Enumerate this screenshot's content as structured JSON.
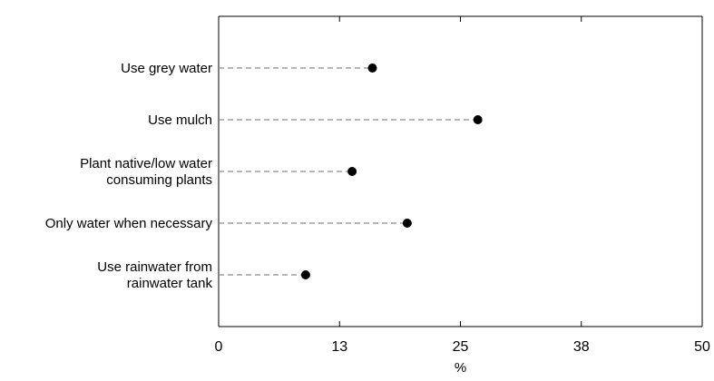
{
  "chart_data": {
    "type": "dot",
    "title": "",
    "xlabel": "%",
    "ylabel": "",
    "xlim": [
      0,
      50
    ],
    "x_ticks": [
      "0",
      "13",
      "25",
      "38",
      "50"
    ],
    "x_tick_values": [
      0,
      12.5,
      25,
      37.5,
      50
    ],
    "grid": false,
    "legend": "none",
    "categories": [
      [
        "Use grey water"
      ],
      [
        "Use mulch"
      ],
      [
        "Plant native/low water",
        "consuming plants"
      ],
      [
        "Only water when necessary"
      ],
      [
        "Use rainwater from",
        "rainwater tank"
      ]
    ],
    "values": [
      15.9,
      26.8,
      13.8,
      19.5,
      9.0
    ],
    "colors": {
      "marker": "#000000",
      "leader_line": "#8c8c8c",
      "axis": "#000000"
    }
  }
}
